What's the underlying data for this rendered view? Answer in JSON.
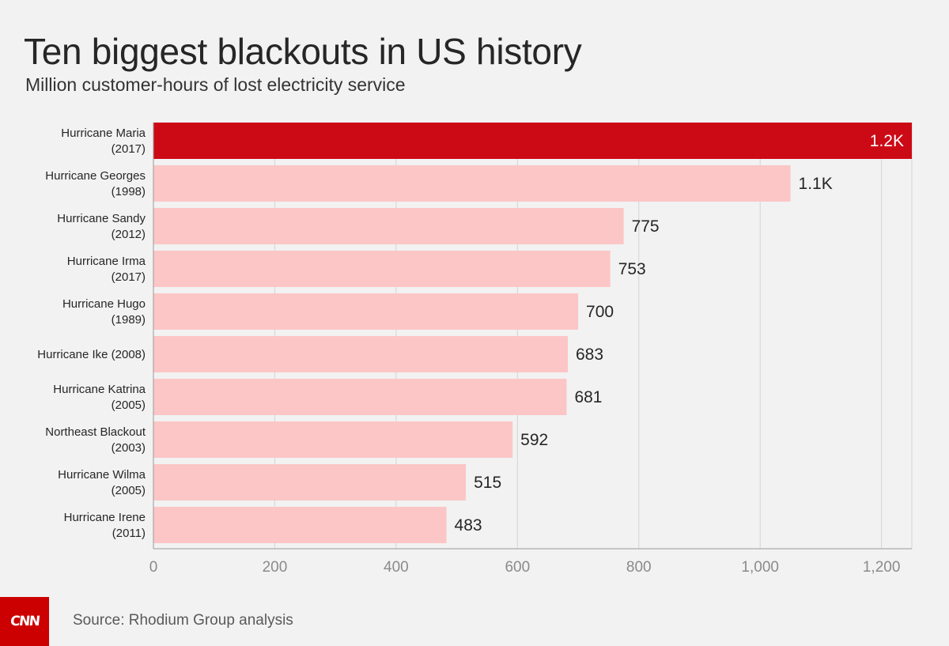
{
  "brand": {
    "logo_text": "CNN",
    "logo_color": "#cc0000"
  },
  "header": {
    "title": "Ten biggest blackouts in US history",
    "subtitle": "Million customer-hours of lost electricity service"
  },
  "footer": {
    "source": "Source: Rhodium Group analysis"
  },
  "chart_data": {
    "type": "bar",
    "orientation": "horizontal",
    "title": "Ten biggest blackouts in US history",
    "subtitle": "Million customer-hours of lost electricity service",
    "xlabel": "",
    "ylabel": "",
    "categories": [
      [
        "Hurricane Maria",
        "(2017)"
      ],
      [
        "Hurricane Georges",
        "(1998)"
      ],
      [
        "Hurricane Sandy",
        "(2012)"
      ],
      [
        "Hurricane Irma",
        "(2017)"
      ],
      [
        "Hurricane Hugo",
        "(1989)"
      ],
      [
        "Hurricane Ike (2008)"
      ],
      [
        "Hurricane Katrina",
        "(2005)"
      ],
      [
        "Northeast Blackout",
        "(2003)"
      ],
      [
        "Hurricane Wilma",
        "(2005)"
      ],
      [
        "Hurricane Irene",
        "(2011)"
      ]
    ],
    "values": [
      1250,
      1050,
      775,
      753,
      700,
      683,
      681,
      592,
      515,
      483
    ],
    "value_labels": [
      "1.2K",
      "1.1K",
      "775",
      "753",
      "700",
      "683",
      "681",
      "592",
      "515",
      "483"
    ],
    "highlight_index": 0,
    "xlim": [
      0,
      1250
    ],
    "xticks": [
      0,
      200,
      400,
      600,
      800,
      1000,
      1200
    ],
    "xtick_labels": [
      "0",
      "200",
      "400",
      "600",
      "800",
      "1,000",
      "1,200"
    ],
    "grid": true,
    "colors": {
      "highlight": "#cc0a16",
      "bar": "#fcc6c6",
      "grid": "#d4d4d4",
      "axis": "#9a9a9a"
    }
  }
}
